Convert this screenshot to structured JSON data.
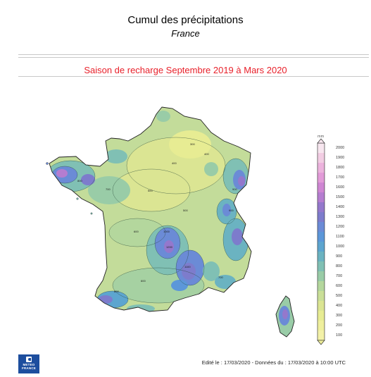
{
  "header": {
    "title": "Cumul des précipitations",
    "subtitle": "France",
    "season": "Saison de recharge  Septembre 2019 à Mars 2020"
  },
  "legend": {
    "unit": "mm",
    "ticks": [
      "2000",
      "1900",
      "1800",
      "1700",
      "1600",
      "1500",
      "1400",
      "1300",
      "1200",
      "1100",
      "1000",
      "900",
      "800",
      "700",
      "600",
      "500",
      "400",
      "300",
      "200",
      "100"
    ],
    "colors": [
      "#f7e6ef",
      "#f2cde3",
      "#ecb3dd",
      "#e29bd8",
      "#cf86d3",
      "#b57dd0",
      "#9478cc",
      "#7d7ccc",
      "#6b8bd6",
      "#5c97d9",
      "#5da5cf",
      "#6bb3c1",
      "#80c0b4",
      "#99cca7",
      "#b4d79d",
      "#cadf98",
      "#dbe593",
      "#e7ec93",
      "#efef9d",
      "#f3f1a8"
    ]
  },
  "map_labels": [
    "400",
    "300",
    "500",
    "600",
    "700",
    "800",
    "900",
    "1000",
    "600",
    "400",
    "500",
    "1200",
    "800",
    "700",
    "900",
    "1100"
  ],
  "footer": {
    "edited": "Edité le : 17/03/2020 - Données du : 17/03/2020 à 10:00 UTC"
  },
  "logo": {
    "line1": "METEO",
    "line2": "FRANCE"
  }
}
